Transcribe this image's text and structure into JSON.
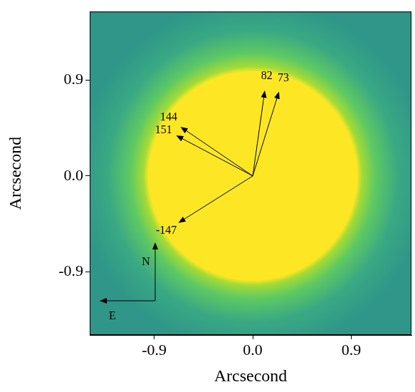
{
  "chart_data": {
    "type": "image",
    "xlabel": "Arcsecond",
    "ylabel": "Arcsecond",
    "xlim": [
      -1.49,
      1.45
    ],
    "ylim": [
      -1.49,
      1.54
    ],
    "xticks": [
      -0.9,
      {
        "value": 0,
        "label": "0.0"
      },
      0.9
    ],
    "yticks": [
      -0.9,
      {
        "value": 0,
        "label": "0.0"
      },
      0.9
    ],
    "grid": false,
    "saturation_radius": 0.95,
    "arrows": [
      {
        "label": "82",
        "x": 0.11,
        "y": 0.8
      },
      {
        "label": "73",
        "x": 0.24,
        "y": 0.79
      },
      {
        "label": "144",
        "x": -0.66,
        "y": 0.46
      },
      {
        "label": "151",
        "x": -0.7,
        "y": 0.38
      },
      {
        "label": "-147",
        "x": -0.68,
        "y": -0.44
      }
    ],
    "compass": {
      "north": "N",
      "east": "E"
    }
  }
}
